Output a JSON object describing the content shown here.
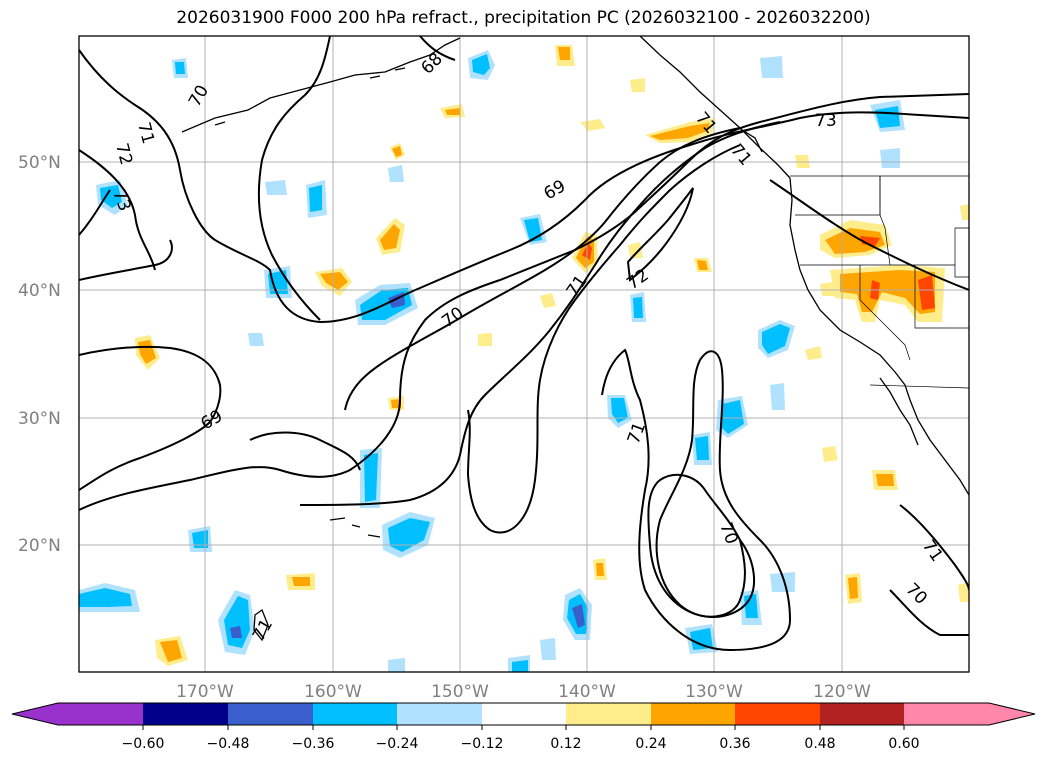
{
  "title": "2026031900 F000 200 hPa refract., precipitation PC (2026032100 - 2026032200)",
  "map": {
    "lat_labels": [
      "50°N",
      "40°N",
      "30°N",
      "20°N"
    ],
    "lon_labels": [
      "170°W",
      "160°W",
      "150°W",
      "140°W",
      "130°W",
      "120°W"
    ],
    "contour_labels": [
      "70",
      "71",
      "72",
      "73",
      "69",
      "70",
      "71",
      "72",
      "73",
      "71",
      "69",
      "70",
      "71",
      "70",
      "71",
      "71",
      "71",
      "68"
    ]
  },
  "colorbar": {
    "tick_labels": [
      "−0.60",
      "−0.48",
      "−0.36",
      "−0.24",
      "−0.12",
      "0.12",
      "0.24",
      "0.36",
      "0.48",
      "0.60"
    ],
    "colors": [
      "#9932cc",
      "#00008b",
      "#3a5fcd",
      "#00bfff",
      "#b0e2ff",
      "#ffffff",
      "#ffec8b",
      "#ffa500",
      "#ff4500",
      "#b22222",
      "#ff88aa"
    ]
  }
}
